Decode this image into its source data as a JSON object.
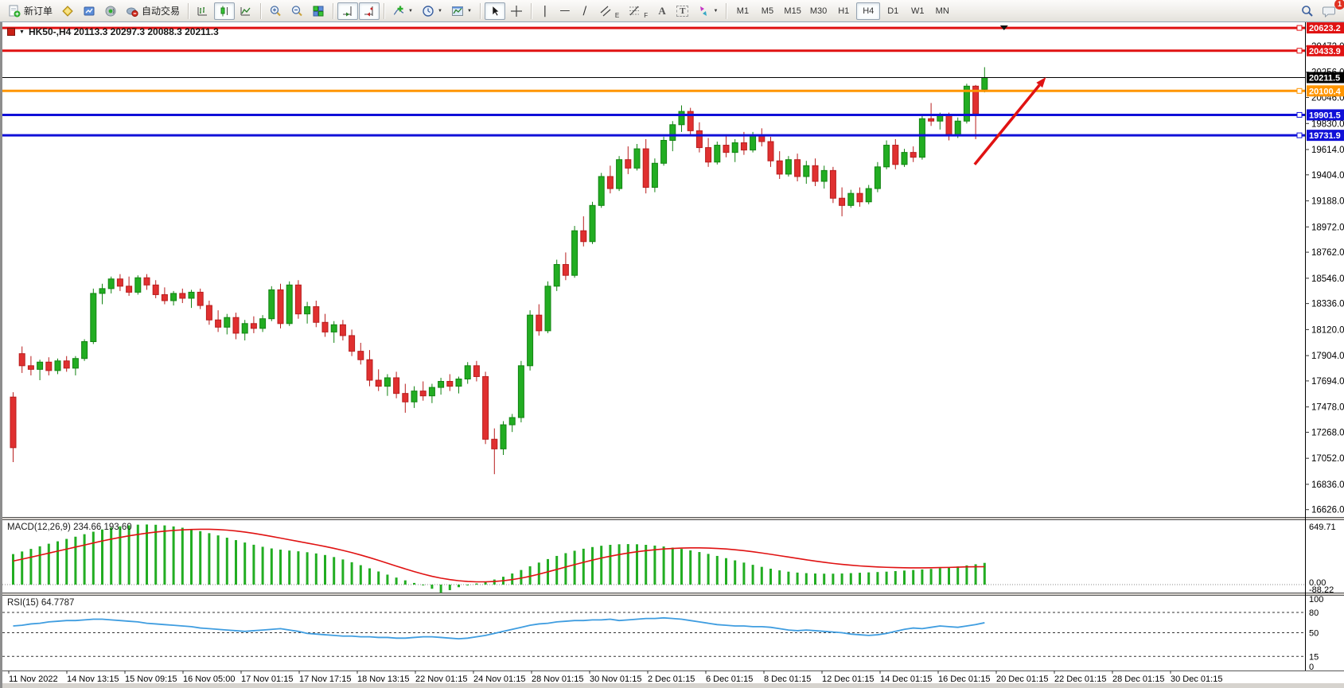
{
  "toolbar": {
    "new_order_label": "新订单",
    "auto_trading_label": "自动交易",
    "timeframes": [
      "M1",
      "M5",
      "M15",
      "M30",
      "H1",
      "H4",
      "D1",
      "W1",
      "MN"
    ],
    "active_timeframe": "H4",
    "notification_badge": "1",
    "icons": {
      "dropdown_caret": "▼",
      "vline_glyph": "|",
      "hline_glyph": "—",
      "tline_glyph": "/",
      "channel_glyph": "〃",
      "channel_sub": "E",
      "fibo_sub": "F",
      "text_glyph": "A",
      "label_glyph": "T",
      "crosshair_glyph": "+"
    }
  },
  "chart": {
    "title": "HK50-,H4  20113.3 20297.3 20088.3 20211.3",
    "symbol": "HK50-",
    "timeframe": "H4",
    "open": "20113.3",
    "high": "20297.3",
    "low": "20088.3",
    "close": "20211.3"
  },
  "chart_data": {
    "type": "candlestick",
    "title": "HK50-,H4",
    "legend_position": "top-left",
    "grid": false,
    "price_axis": {
      "range": [
        16560,
        20700
      ],
      "ticks": [
        20472.0,
        20256.0,
        20046.0,
        19830.0,
        19614.0,
        19404.0,
        19188.0,
        18972.0,
        18762.0,
        18546.0,
        18336.0,
        18120.0,
        17904.0,
        17694.0,
        17478.0,
        17268.0,
        17052.0,
        16836.0,
        16626.0
      ]
    },
    "time_labels": [
      "11 Nov 2022",
      "14 Nov 13:15",
      "15 Nov 09:15",
      "16 Nov 05:00",
      "17 Nov 01:15",
      "17 Nov 17:15",
      "18 Nov 13:15",
      "22 Nov 01:15",
      "24 Nov 01:15",
      "28 Nov 01:15",
      "30 Nov 01:15",
      "2 Dec 01:15",
      "6 Dec 01:15",
      "8 Dec 01:15",
      "12 Dec 01:15",
      "14 Dec 01:15",
      "16 Dec 01:15",
      "20 Dec 01:15",
      "22 Dec 01:15",
      "28 Dec 01:15",
      "30 Dec 01:15"
    ],
    "candles": {
      "up_color": "#22ad22",
      "up_stroke": "#128312",
      "down_color": "#e03030",
      "down_stroke": "#b81d1d",
      "ohlc": [
        [
          17560,
          17600,
          17020,
          17140
        ],
        [
          17920,
          17980,
          17760,
          17820
        ],
        [
          17820,
          17900,
          17740,
          17790
        ],
        [
          17790,
          17870,
          17700,
          17850
        ],
        [
          17850,
          17890,
          17740,
          17780
        ],
        [
          17780,
          17880,
          17750,
          17860
        ],
        [
          17860,
          17900,
          17770,
          17800
        ],
        [
          17800,
          17900,
          17740,
          17880
        ],
        [
          17880,
          18040,
          17860,
          18020
        ],
        [
          18020,
          18460,
          18000,
          18420
        ],
        [
          18420,
          18500,
          18330,
          18460
        ],
        [
          18460,
          18560,
          18420,
          18540
        ],
        [
          18540,
          18580,
          18440,
          18480
        ],
        [
          18480,
          18560,
          18400,
          18430
        ],
        [
          18430,
          18570,
          18410,
          18550
        ],
        [
          18550,
          18580,
          18450,
          18490
        ],
        [
          18490,
          18530,
          18380,
          18410
        ],
        [
          18410,
          18470,
          18330,
          18360
        ],
        [
          18360,
          18440,
          18320,
          18420
        ],
        [
          18420,
          18460,
          18340,
          18380
        ],
        [
          18380,
          18450,
          18300,
          18430
        ],
        [
          18430,
          18460,
          18290,
          18320
        ],
        [
          18320,
          18360,
          18160,
          18200
        ],
        [
          18200,
          18280,
          18100,
          18140
        ],
        [
          18140,
          18250,
          18080,
          18220
        ],
        [
          18220,
          18260,
          18040,
          18090
        ],
        [
          18090,
          18200,
          18030,
          18170
        ],
        [
          18170,
          18230,
          18090,
          18130
        ],
        [
          18130,
          18240,
          18100,
          18210
        ],
        [
          18210,
          18480,
          18190,
          18450
        ],
        [
          18450,
          18500,
          18130,
          18170
        ],
        [
          18170,
          18520,
          18150,
          18490
        ],
        [
          18490,
          18530,
          18210,
          18250
        ],
        [
          18250,
          18350,
          18170,
          18310
        ],
        [
          18310,
          18360,
          18140,
          18180
        ],
        [
          18180,
          18250,
          18060,
          18100
        ],
        [
          18100,
          18190,
          18010,
          18160
        ],
        [
          18160,
          18200,
          18030,
          18070
        ],
        [
          18070,
          18120,
          17900,
          17940
        ],
        [
          17940,
          18010,
          17830,
          17870
        ],
        [
          17870,
          17950,
          17650,
          17700
        ],
        [
          17700,
          17790,
          17610,
          17650
        ],
        [
          17650,
          17750,
          17570,
          17720
        ],
        [
          17720,
          17770,
          17550,
          17590
        ],
        [
          17590,
          17670,
          17430,
          17520
        ],
        [
          17520,
          17650,
          17470,
          17610
        ],
        [
          17610,
          17690,
          17530,
          17570
        ],
        [
          17570,
          17670,
          17510,
          17640
        ],
        [
          17640,
          17720,
          17580,
          17690
        ],
        [
          17690,
          17750,
          17610,
          17650
        ],
        [
          17650,
          17730,
          17590,
          17710
        ],
        [
          17710,
          17850,
          17670,
          17820
        ],
        [
          17820,
          17860,
          17690,
          17730
        ],
        [
          17730,
          17770,
          17170,
          17210
        ],
        [
          17210,
          17300,
          16920,
          17130
        ],
        [
          17130,
          17360,
          17080,
          17330
        ],
        [
          17330,
          17420,
          17270,
          17390
        ],
        [
          17390,
          17860,
          17350,
          17820
        ],
        [
          17820,
          18280,
          17780,
          18240
        ],
        [
          18240,
          18330,
          18070,
          18110
        ],
        [
          18110,
          18520,
          18090,
          18480
        ],
        [
          18480,
          18700,
          18440,
          18660
        ],
        [
          18660,
          18760,
          18530,
          18570
        ],
        [
          18570,
          18980,
          18550,
          18940
        ],
        [
          18940,
          19060,
          18810,
          18850
        ],
        [
          18850,
          19180,
          18830,
          19150
        ],
        [
          19150,
          19420,
          19130,
          19390
        ],
        [
          19390,
          19480,
          19250,
          19290
        ],
        [
          19290,
          19560,
          19270,
          19530
        ],
        [
          19530,
          19640,
          19410,
          19460
        ],
        [
          19460,
          19660,
          19440,
          19620
        ],
        [
          19620,
          19700,
          19250,
          19300
        ],
        [
          19300,
          19540,
          19260,
          19500
        ],
        [
          19500,
          19720,
          19480,
          19690
        ],
        [
          19690,
          19850,
          19600,
          19820
        ],
        [
          19820,
          19980,
          19760,
          19930
        ],
        [
          19930,
          19960,
          19730,
          19770
        ],
        [
          19770,
          19840,
          19590,
          19630
        ],
        [
          19630,
          19710,
          19470,
          19510
        ],
        [
          19510,
          19680,
          19490,
          19650
        ],
        [
          19650,
          19740,
          19550,
          19590
        ],
        [
          19590,
          19700,
          19510,
          19670
        ],
        [
          19670,
          19760,
          19570,
          19610
        ],
        [
          19610,
          19760,
          19590,
          19730
        ],
        [
          19730,
          19790,
          19640,
          19680
        ],
        [
          19680,
          19720,
          19470,
          19520
        ],
        [
          19520,
          19600,
          19370,
          19410
        ],
        [
          19410,
          19560,
          19390,
          19530
        ],
        [
          19530,
          19580,
          19350,
          19390
        ],
        [
          19390,
          19520,
          19330,
          19480
        ],
        [
          19480,
          19540,
          19310,
          19350
        ],
        [
          19350,
          19480,
          19290,
          19440
        ],
        [
          19440,
          19470,
          19170,
          19210
        ],
        [
          19210,
          19300,
          19060,
          19150
        ],
        [
          19150,
          19280,
          19130,
          19250
        ],
        [
          19250,
          19300,
          19140,
          19180
        ],
        [
          19180,
          19320,
          19160,
          19290
        ],
        [
          19290,
          19510,
          19260,
          19470
        ],
        [
          19470,
          19690,
          19450,
          19650
        ],
        [
          19650,
          19700,
          19450,
          19490
        ],
        [
          19490,
          19620,
          19470,
          19590
        ],
        [
          19590,
          19640,
          19510,
          19550
        ],
        [
          19550,
          19900,
          19530,
          19870
        ],
        [
          19870,
          20000,
          19810,
          19850
        ],
        [
          19850,
          19920,
          19780,
          19900
        ],
        [
          19900,
          19920,
          19690,
          19730
        ],
        [
          19730,
          19880,
          19710,
          19850
        ],
        [
          19850,
          20160,
          19830,
          20140
        ],
        [
          20140,
          20150,
          19700,
          19910
        ],
        [
          20113.3,
          20297.3,
          20088.3,
          20211.3
        ]
      ]
    },
    "hlines": [
      {
        "price": 20623.2,
        "label": "20623.2",
        "color": "#e01212",
        "width": 3,
        "current": false
      },
      {
        "price": 20433.9,
        "label": "20433.9",
        "color": "#e01212",
        "width": 3,
        "current": false
      },
      {
        "price": 20211.5,
        "label": "20211.5",
        "color": "#000000",
        "width": 1,
        "current": true
      },
      {
        "price": 20100.4,
        "label": "20100.4",
        "color": "#ff9500",
        "width": 3,
        "current": false
      },
      {
        "price": 19901.5,
        "label": "19901.5",
        "color": "#1010d8",
        "width": 3,
        "current": false
      },
      {
        "price": 19731.9,
        "label": "19731.9",
        "color": "#1010d8",
        "width": 3,
        "current": false
      }
    ],
    "annotations": {
      "arrow": {
        "bar1": 108.2,
        "price1": 19490,
        "bar2": 116.2,
        "price2": 20215,
        "color": "#e01212"
      },
      "top_marker_bar": 111.5
    },
    "macd": {
      "label": "MACD(12,26,9) 234.66 193.60",
      "params": "12,26,9",
      "main_value": 234.66,
      "signal_value": 193.6,
      "axis_labels": [
        "649.71",
        "0.00",
        "-88.22"
      ],
      "max": 649.71,
      "min": -88.22,
      "hist_color": "#22ad22",
      "signal_color": "#e01212",
      "histogram": [
        330,
        358,
        386,
        414,
        442,
        468,
        494,
        518,
        545,
        572,
        596,
        615,
        630,
        641,
        648,
        650,
        647,
        640,
        629,
        615,
        598,
        578,
        556,
        532,
        507,
        481,
        455,
        431,
        409,
        391,
        378,
        368,
        360,
        350,
        337,
        320,
        298,
        272,
        242,
        210,
        176,
        142,
        108,
        76,
        46,
        18,
        -8,
        -45,
        -88,
        -60,
        -28,
        -4,
        12,
        30,
        55,
        85,
        120,
        158,
        198,
        238,
        276,
        310,
        340,
        366,
        388,
        406,
        420,
        430,
        436,
        438,
        436,
        430,
        422,
        412,
        400,
        386,
        370,
        352,
        332,
        310,
        286,
        262,
        238,
        214,
        192,
        172,
        154,
        140,
        130,
        124,
        120,
        118,
        118,
        120,
        124,
        128,
        132,
        136,
        140,
        146,
        152,
        158,
        164,
        170,
        178,
        186,
        196,
        208,
        220,
        234.66
      ],
      "signal": [
        255,
        275,
        296,
        318,
        340,
        362,
        384,
        406,
        428,
        450,
        472,
        492,
        510,
        527,
        542,
        556,
        568,
        578,
        586,
        592,
        596,
        598,
        598,
        595,
        589,
        580,
        568,
        554,
        538,
        521,
        503,
        485,
        467,
        449,
        431,
        412,
        392,
        370,
        346,
        320,
        292,
        262,
        231,
        200,
        170,
        141,
        114,
        90,
        70,
        54,
        42,
        34,
        30,
        30,
        34,
        42,
        54,
        70,
        90,
        113,
        138,
        164,
        190,
        216,
        241,
        265,
        287,
        307,
        325,
        341,
        355,
        367,
        377,
        385,
        391,
        395,
        397,
        397,
        395,
        391,
        385,
        377,
        367,
        355,
        342,
        328,
        313,
        298,
        283,
        268,
        254,
        241,
        229,
        219,
        210,
        202,
        196,
        191,
        187,
        184,
        182,
        181,
        181,
        182,
        184,
        186,
        189,
        192,
        193,
        193.6
      ]
    },
    "rsi": {
      "label": "RSI(15) 64.7787",
      "period": 15,
      "value": 64.7787,
      "levels": [
        80,
        50,
        15
      ],
      "axis_labels": [
        "100",
        "80",
        "50",
        "15",
        "0"
      ],
      "range": [
        0,
        100
      ],
      "color": "#3f9de0",
      "values": [
        60,
        61,
        63,
        64,
        66,
        67,
        68,
        68,
        69,
        70,
        70,
        69,
        68,
        67,
        66,
        64,
        63,
        62,
        61,
        60,
        59,
        57,
        56,
        55,
        54,
        53,
        52,
        53,
        54,
        55,
        56,
        54,
        52,
        49,
        48,
        47,
        46,
        45,
        45,
        44,
        44,
        43,
        43,
        42,
        42,
        43,
        44,
        44,
        43,
        42,
        41,
        42,
        44,
        46,
        49,
        52,
        55,
        58,
        61,
        63,
        64,
        66,
        67,
        68,
        68,
        69,
        69,
        70,
        68,
        69,
        70,
        71,
        71,
        72,
        71,
        70,
        68,
        66,
        64,
        62,
        61,
        60,
        60,
        59,
        59,
        58,
        56,
        54,
        53,
        54,
        53,
        52,
        51,
        50,
        48,
        47,
        46,
        47,
        49,
        52,
        55,
        57,
        56,
        58,
        60,
        59,
        58,
        60,
        62,
        64.78
      ]
    }
  }
}
